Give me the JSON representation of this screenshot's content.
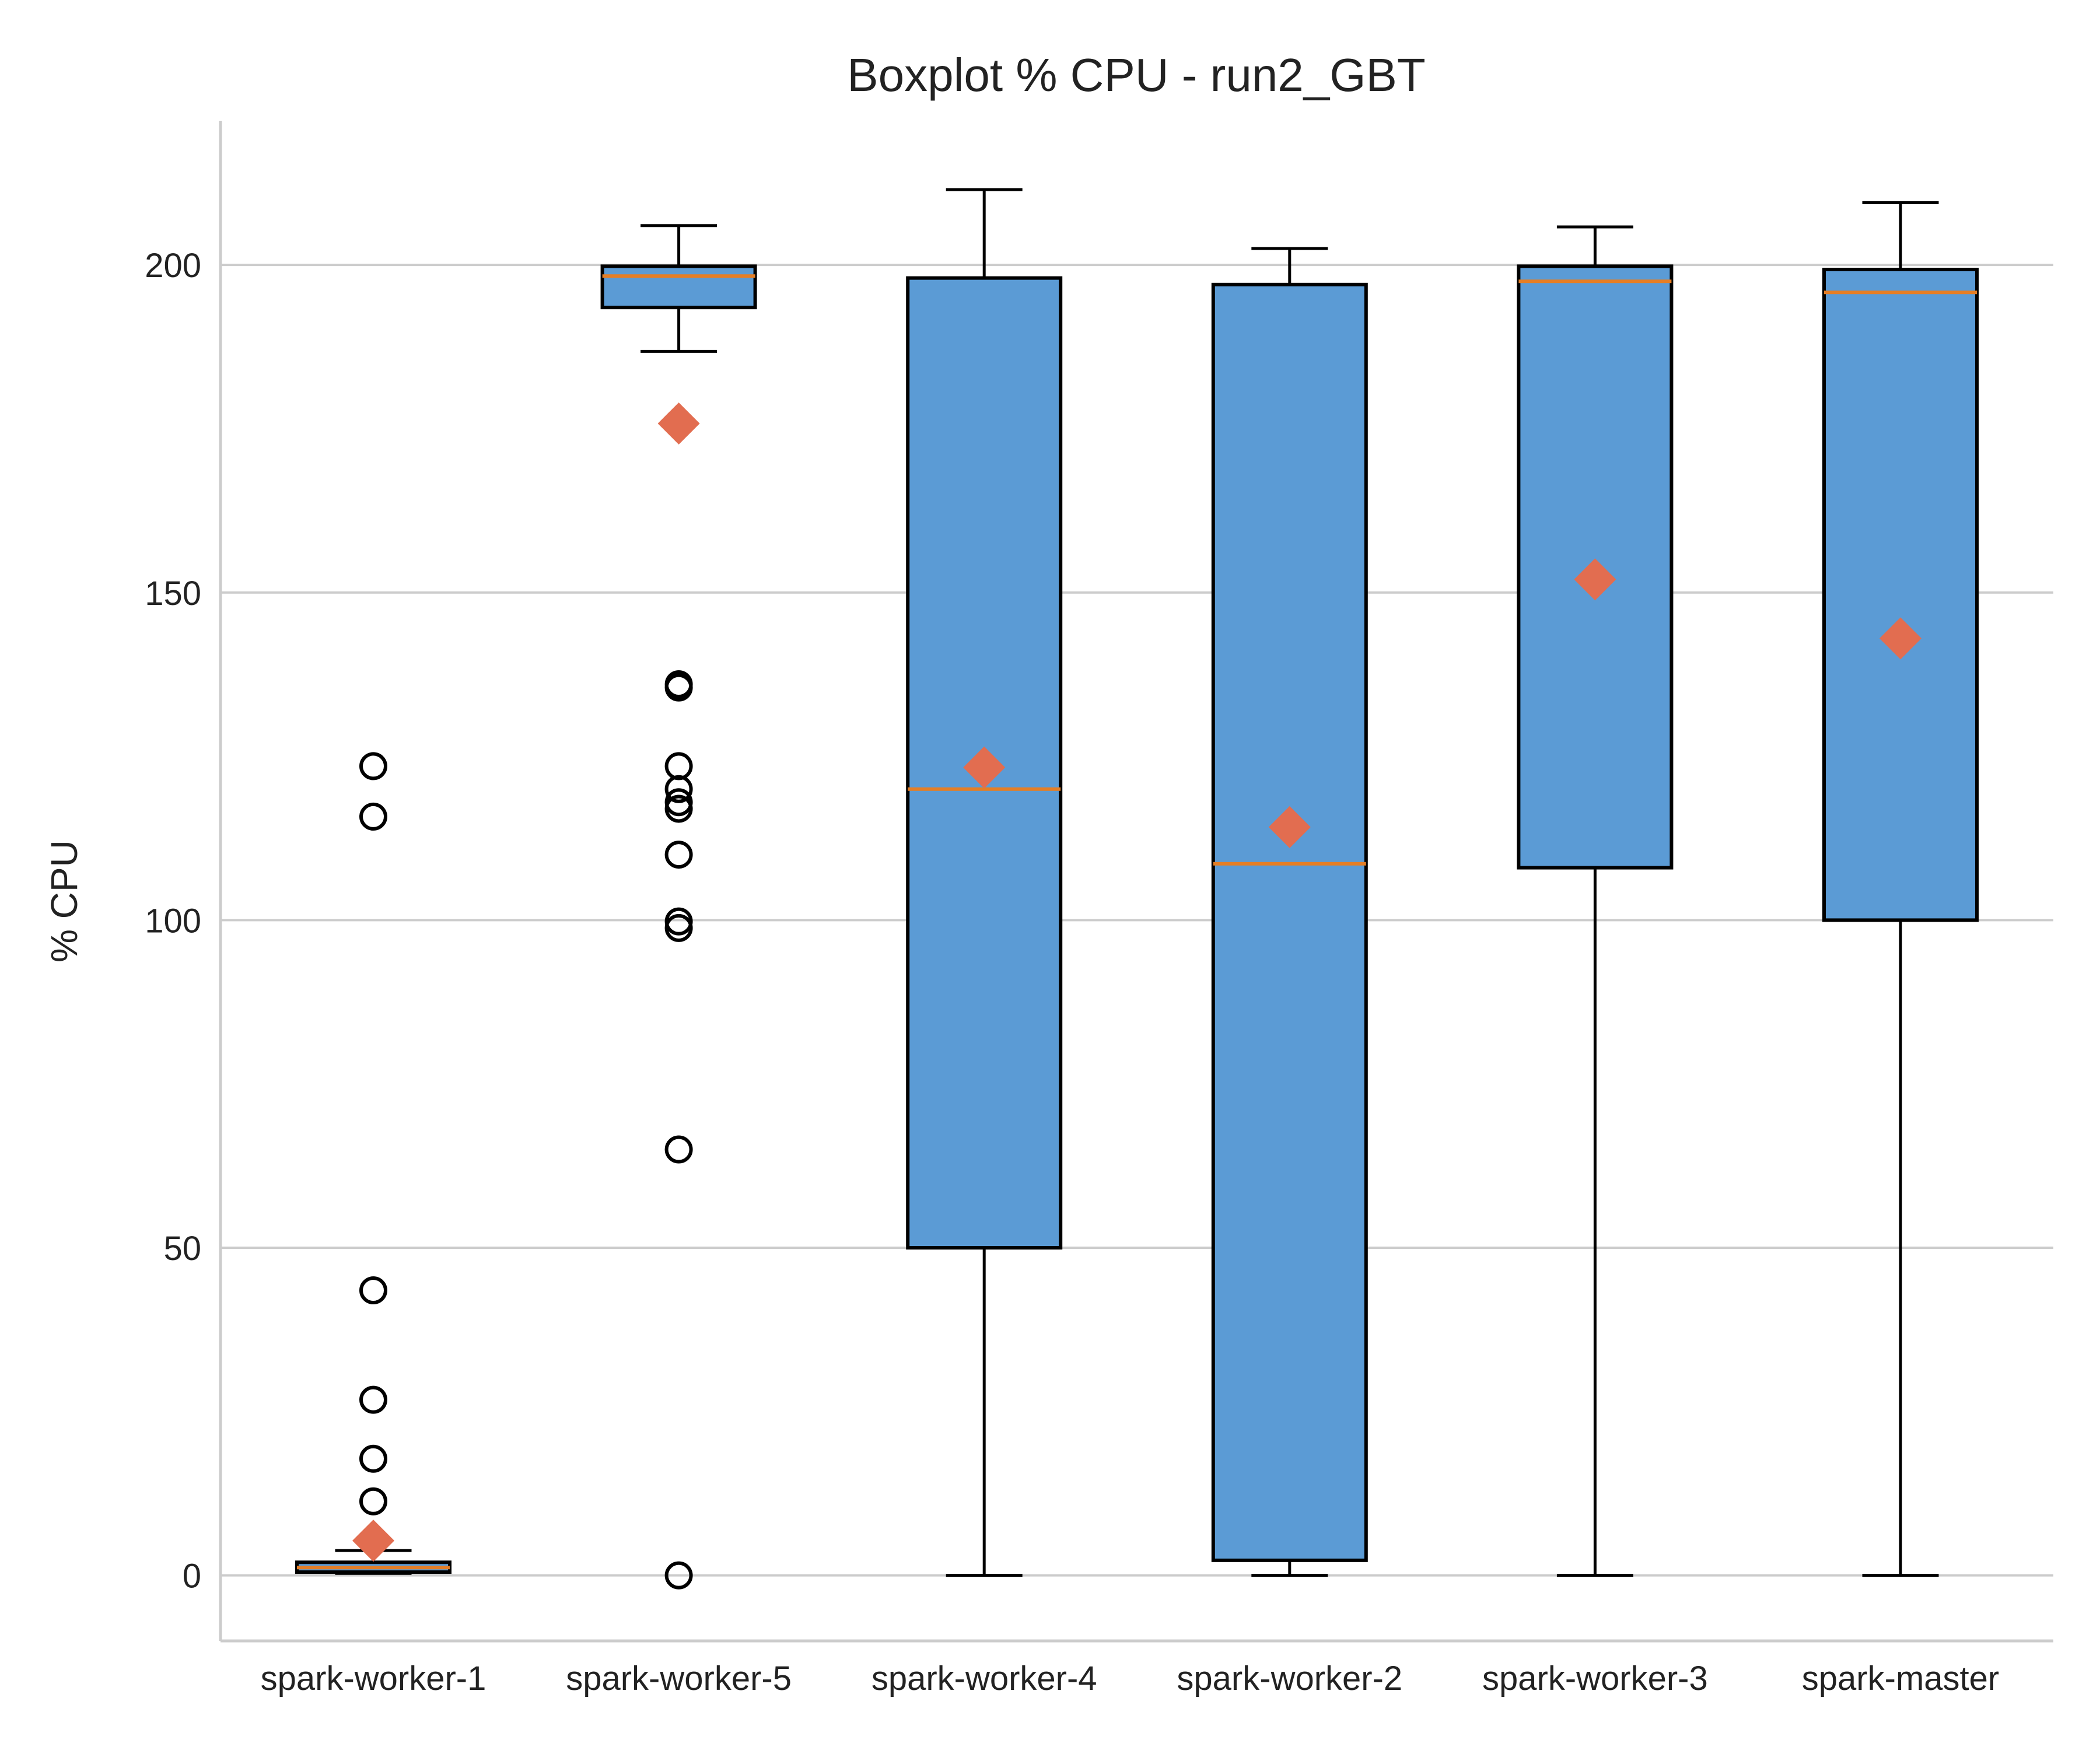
{
  "chart_data": {
    "type": "box",
    "title": "Boxplot % CPU - run2_GBT",
    "xlabel": "",
    "ylabel": "% CPU",
    "ylim": [
      -10,
      222
    ],
    "yticks": [
      0,
      50,
      100,
      150,
      200
    ],
    "grid": "horizontal",
    "legend": "none",
    "colors": {
      "box": "#5b9bd5",
      "median": "#e57e25",
      "mean": "#e26d50"
    },
    "categories": [
      "spark-worker-1",
      "spark-worker-5",
      "spark-worker-4",
      "spark-worker-2",
      "spark-worker-3",
      "spark-master"
    ],
    "boxes": [
      {
        "whisker_low": 0.3,
        "q1": 0.5,
        "median": 1.2,
        "q3": 2.0,
        "whisker_high": 3.8,
        "mean": 5.3,
        "outliers": [
          123.5,
          115.8,
          43.5,
          26.8,
          17.8,
          11.3
        ]
      },
      {
        "whisker_low": 186.8,
        "q1": 193.5,
        "median": 198.3,
        "q3": 199.8,
        "whisker_high": 206.0,
        "mean": 175.8,
        "outliers": [
          136.0,
          135.5,
          123.5,
          120.0,
          118.0,
          117.0,
          110.0,
          99.8,
          98.8,
          65.0,
          0.0
        ]
      },
      {
        "whisker_low": 0.0,
        "q1": 50.0,
        "median": 120.0,
        "q3": 198.0,
        "whisker_high": 211.5,
        "mean": 123.3,
        "outliers": []
      },
      {
        "whisker_low": 0.0,
        "q1": 2.3,
        "median": 108.6,
        "q3": 197.0,
        "whisker_high": 202.5,
        "mean": 114.2,
        "outliers": []
      },
      {
        "whisker_low": 0.0,
        "q1": 108.0,
        "median": 197.5,
        "q3": 199.8,
        "whisker_high": 205.8,
        "mean": 152.0,
        "outliers": []
      },
      {
        "whisker_low": 0.0,
        "q1": 100.0,
        "median": 195.8,
        "q3": 199.3,
        "whisker_high": 209.5,
        "mean": 143.0,
        "outliers": []
      }
    ]
  }
}
